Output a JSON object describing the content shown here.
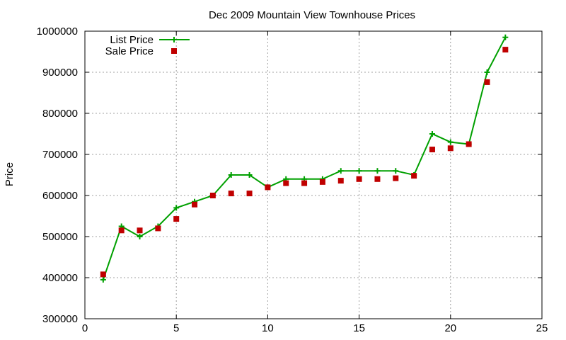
{
  "chart_data": {
    "type": "line",
    "title": "Dec 2009 Mountain View Townhouse Prices",
    "xlabel": "",
    "ylabel": "Price",
    "xlim": [
      0,
      25
    ],
    "ylim": [
      300000,
      1000000
    ],
    "x_ticks": [
      "0",
      "5",
      "10",
      "15",
      "20",
      "25"
    ],
    "y_ticks": [
      "300000",
      "400000",
      "500000",
      "600000",
      "700000",
      "800000",
      "900000",
      "1000000"
    ],
    "x_tick_values": [
      0,
      5,
      10,
      15,
      20,
      25
    ],
    "y_tick_values": [
      300000,
      400000,
      500000,
      600000,
      700000,
      800000,
      900000,
      1000000
    ],
    "grid": true,
    "legend_position": "top-left",
    "series": [
      {
        "name": "List Price",
        "type": "line",
        "color": "#00a000",
        "marker": "plus",
        "x": [
          1,
          2,
          3,
          4,
          5,
          6,
          7,
          8,
          9,
          10,
          11,
          12,
          13,
          14,
          15,
          16,
          17,
          18,
          19,
          20,
          21,
          22,
          23
        ],
        "y": [
          395000,
          525000,
          500000,
          525000,
          570000,
          585000,
          600000,
          650000,
          650000,
          620000,
          640000,
          640000,
          640000,
          660000,
          660000,
          660000,
          660000,
          650000,
          750000,
          730000,
          725000,
          900000,
          985000
        ]
      },
      {
        "name": "Sale Price",
        "type": "scatter",
        "color": "#c00000",
        "marker": "square",
        "x": [
          1,
          2,
          3,
          4,
          5,
          6,
          7,
          8,
          9,
          10,
          11,
          12,
          13,
          14,
          15,
          16,
          17,
          18,
          19,
          20,
          21,
          22,
          23
        ],
        "y": [
          408000,
          515000,
          515000,
          520000,
          543000,
          578000,
          600000,
          605000,
          605000,
          620000,
          630000,
          630000,
          633000,
          636000,
          640000,
          640000,
          642000,
          648000,
          712000,
          715000,
          725000,
          876000,
          955000
        ]
      }
    ]
  }
}
